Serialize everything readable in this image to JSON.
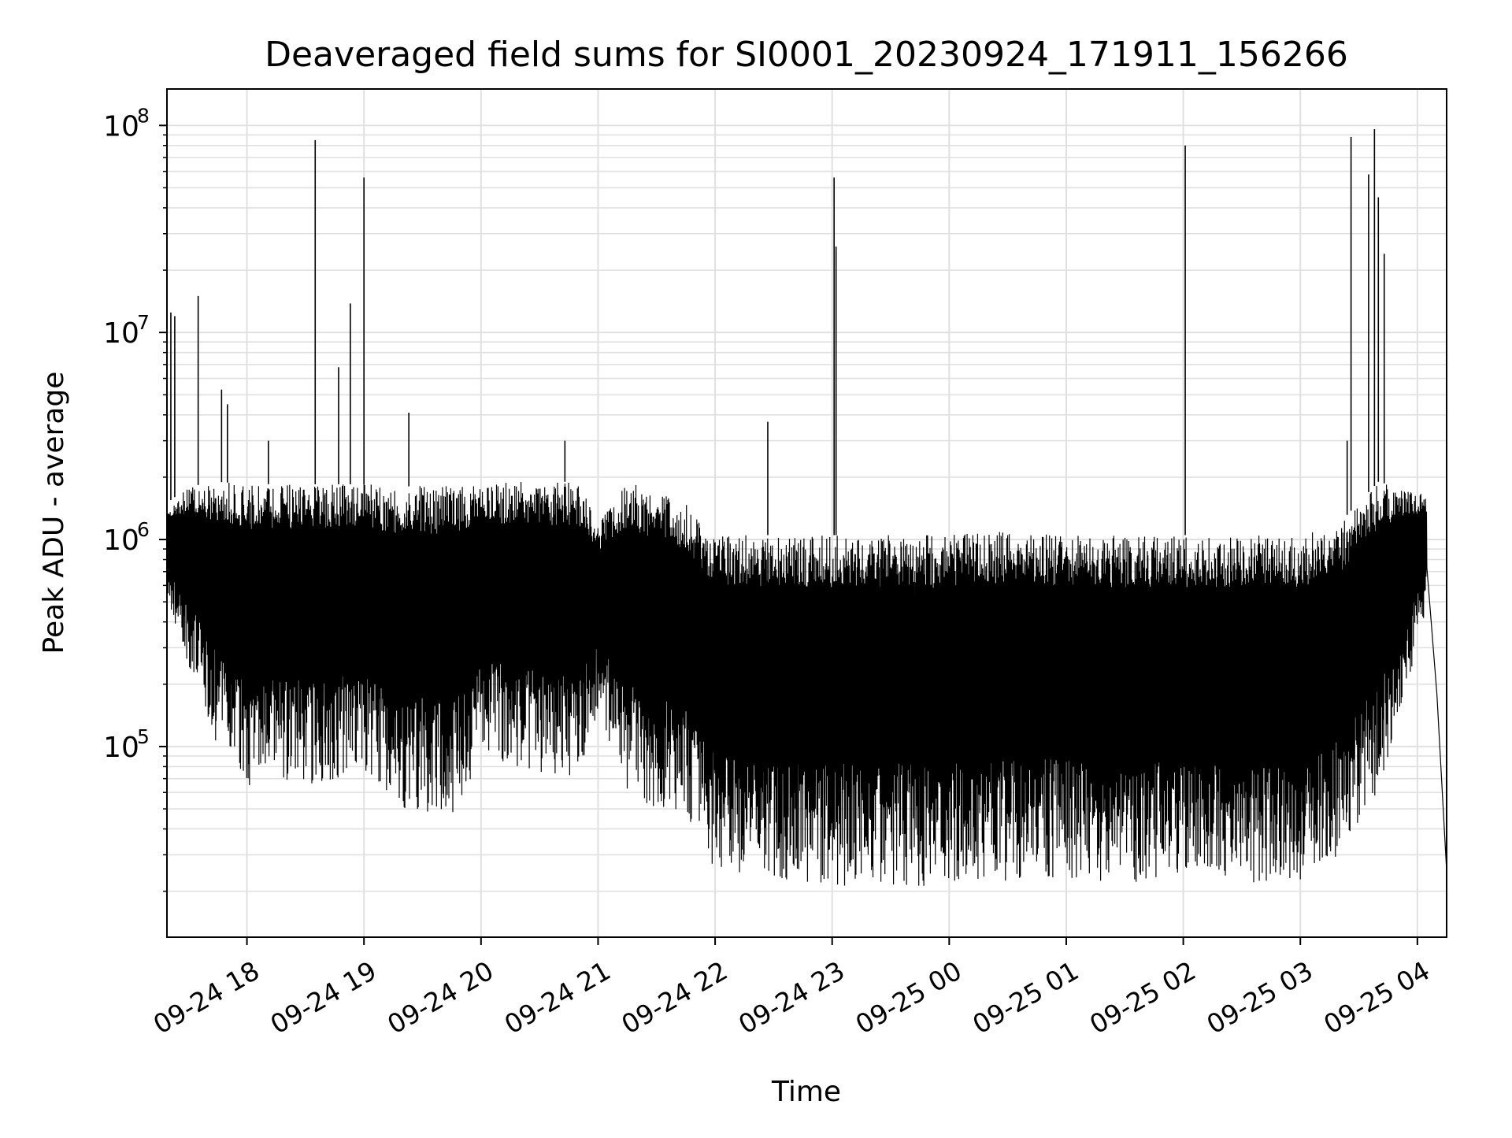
{
  "chart_data": {
    "type": "line",
    "title": "Deaveraged field sums for SI0001_20230924_171911_156266",
    "xlabel": "Time",
    "ylabel": "Peak ADU - average",
    "yscale": "log",
    "ylim": [
      12000,
      150000000
    ],
    "xlim": [
      "09-24 17:19",
      "09-25 04:15"
    ],
    "x_tick_labels": [
      "09-24 18",
      "09-24 19",
      "09-24 20",
      "09-24 21",
      "09-24 22",
      "09-24 23",
      "09-25 00",
      "09-25 01",
      "09-25 02",
      "09-25 03",
      "09-25 04"
    ],
    "y_major_ticks": [
      100000,
      1000000,
      10000000,
      100000000
    ],
    "y_tick_labels": [
      "10",
      "10",
      "10",
      "10"
    ],
    "y_tick_exponents": [
      "5",
      "6",
      "7",
      "8"
    ],
    "grid": true,
    "grid_color": "#e0e0e0",
    "line_color": "#000000",
    "series": [
      {
        "x": [
          "09-24 17:19",
          "09-24 17:24",
          "09-24 17:35",
          "09-24 17:45",
          "09-24 17:50",
          "09-24 18:00",
          "09-24 18:30",
          "09-24 19:00",
          "09-24 19:30",
          "09-24 20:00",
          "09-24 20:30",
          "09-24 21:00",
          "09-24 21:30",
          "09-24 21:50",
          "09-24 22:00",
          "09-24 22:30",
          "09-24 23:00",
          "09-24 23:30",
          "09-25 00:00",
          "09-25 00:30",
          "09-25 01:00",
          "09-25 01:30",
          "09-25 02:00",
          "09-25 02:30",
          "09-25 03:00",
          "09-25 03:20",
          "09-25 03:40",
          "09-25 04:00",
          "09-25 04:08",
          "09-25 04:15"
        ],
        "y": [
          500000,
          12000000,
          15000000,
          5300000,
          1800000,
          1800000,
          80000000,
          55000000,
          1800000,
          1900000,
          1900000,
          1200000,
          1700000,
          1000000,
          1000000,
          3500000,
          55000000,
          1000000,
          1000000,
          1100000,
          1000000,
          1000000,
          80000000,
          1000000,
          1000000,
          85000000,
          95000000,
          1500000,
          500000,
          25000
        ]
      }
    ],
    "envelope": {
      "x": [
        "09-24 17:19",
        "09-24 17:30",
        "09-24 17:45",
        "09-24 18:00",
        "09-24 18:30",
        "09-24 19:00",
        "09-24 19:20",
        "09-24 19:45",
        "09-24 20:00",
        "09-24 20:30",
        "09-24 20:50",
        "09-24 21:00",
        "09-24 21:15",
        "09-24 21:30",
        "09-24 21:45",
        "09-24 22:00",
        "09-24 22:30",
        "09-24 23:00",
        "09-24 23:30",
        "09-25 00:00",
        "09-25 00:30",
        "09-25 01:00",
        "09-25 01:30",
        "09-25 02:00",
        "09-25 02:30",
        "09-25 03:00",
        "09-25 03:20",
        "09-25 03:40",
        "09-25 04:00",
        "09-25 04:05"
      ],
      "high": [
        1500000,
        1800000,
        1900000,
        1850000,
        1850000,
        1850000,
        1800000,
        1850000,
        1900000,
        1900000,
        1900000,
        1200000,
        1900000,
        1700000,
        1500000,
        1050000,
        1050000,
        1050000,
        1050000,
        1050000,
        1100000,
        1050000,
        1050000,
        1050000,
        1050000,
        1050000,
        1200000,
        1900000,
        1700000,
        1600000
      ],
      "low": [
        500000,
        250000,
        100000,
        65000,
        65000,
        75000,
        50000,
        45000,
        90000,
        75000,
        70000,
        150000,
        60000,
        50000,
        45000,
        25000,
        23000,
        21000,
        21000,
        21000,
        22000,
        23000,
        22000,
        22000,
        22000,
        22000,
        30000,
        60000,
        300000,
        500000
      ]
    },
    "spikes": [
      {
        "x": "09-24 17:21",
        "y": 12500000
      },
      {
        "x": "09-24 17:23",
        "y": 12000000
      },
      {
        "x": "09-24 17:35",
        "y": 15000000
      },
      {
        "x": "09-24 17:47",
        "y": 5300000
      },
      {
        "x": "09-24 17:50",
        "y": 4500000
      },
      {
        "x": "09-24 18:11",
        "y": 3000000
      },
      {
        "x": "09-24 18:35",
        "y": 85000000
      },
      {
        "x": "09-24 18:47",
        "y": 6800000
      },
      {
        "x": "09-24 18:53",
        "y": 13800000
      },
      {
        "x": "09-24 19:00",
        "y": 56000000
      },
      {
        "x": "09-24 19:23",
        "y": 4100000
      },
      {
        "x": "09-24 20:43",
        "y": 3000000
      },
      {
        "x": "09-24 22:27",
        "y": 3700000
      },
      {
        "x": "09-24 23:01",
        "y": 56000000
      },
      {
        "x": "09-24 23:02",
        "y": 26000000
      },
      {
        "x": "09-25 02:01",
        "y": 80000000
      },
      {
        "x": "09-25 03:24",
        "y": 3000000
      },
      {
        "x": "09-25 03:26",
        "y": 88000000
      },
      {
        "x": "09-25 03:35",
        "y": 58000000
      },
      {
        "x": "09-25 03:38",
        "y": 96000000
      },
      {
        "x": "09-25 03:40",
        "y": 45000000
      },
      {
        "x": "09-25 03:43",
        "y": 24000000
      }
    ]
  }
}
